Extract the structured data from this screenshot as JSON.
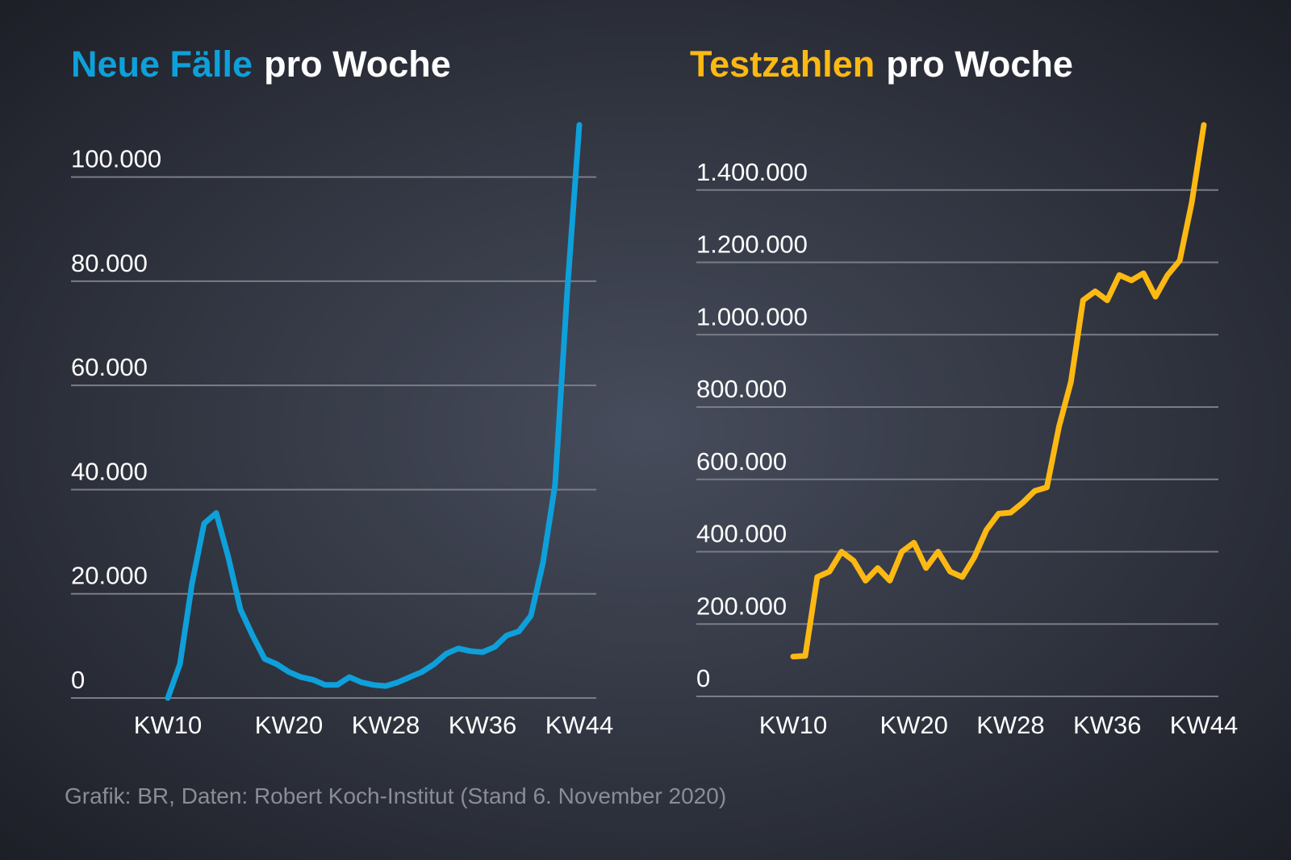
{
  "chart_data": [
    {
      "type": "line",
      "title_highlight": "Neue Fälle",
      "title_rest": "pro Woche",
      "x": [
        10,
        11,
        12,
        13,
        14,
        15,
        16,
        17,
        18,
        19,
        20,
        21,
        22,
        23,
        24,
        25,
        26,
        27,
        28,
        29,
        30,
        31,
        32,
        33,
        34,
        35,
        36,
        37,
        38,
        39,
        40,
        41,
        42,
        43,
        44
      ],
      "series": [
        {
          "color": "#0ea0da",
          "values": [
            0,
            6500,
            22000,
            33500,
            35500,
            27000,
            17000,
            12000,
            7500,
            6500,
            5000,
            4000,
            3500,
            2500,
            2500,
            4000,
            3000,
            2500,
            2300,
            3000,
            4000,
            5000,
            6500,
            8500,
            9500,
            9000,
            8800,
            9800,
            12000,
            12800,
            15800,
            26000,
            41000,
            78000,
            110000
          ]
        }
      ],
      "xlim": [
        10,
        44
      ],
      "xticks": [
        {
          "value": 10,
          "label": "KW10"
        },
        {
          "value": 20,
          "label": "KW20"
        },
        {
          "value": 28,
          "label": "KW28"
        },
        {
          "value": 36,
          "label": "KW36"
        },
        {
          "value": 44,
          "label": "KW44"
        }
      ],
      "ylim": [
        0,
        110000
      ],
      "yticks": [
        0,
        {
          "value": 20000,
          "label": "20.000"
        },
        {
          "value": 40000,
          "label": "40.000"
        },
        {
          "value": 60000,
          "label": "60.000"
        },
        {
          "value": 80000,
          "label": "80.000"
        },
        {
          "value": 100000,
          "label": "100.000"
        }
      ],
      "grid": true
    },
    {
      "type": "line",
      "title_highlight": "Testzahlen",
      "title_rest": "pro Woche",
      "x": [
        10,
        11,
        12,
        13,
        14,
        15,
        16,
        17,
        18,
        19,
        20,
        21,
        22,
        23,
        24,
        25,
        26,
        27,
        28,
        29,
        30,
        31,
        32,
        33,
        34,
        35,
        36,
        37,
        38,
        39,
        40,
        41,
        42,
        43,
        44
      ],
      "series": [
        {
          "color": "#fdb913",
          "values": [
            110000,
            112000,
            330000,
            345000,
            400000,
            375000,
            320000,
            355000,
            320000,
            400000,
            425000,
            355000,
            400000,
            345000,
            330000,
            385000,
            460000,
            505000,
            508000,
            535000,
            568000,
            578000,
            745000,
            870000,
            1095000,
            1120000,
            1095000,
            1165000,
            1150000,
            1170000,
            1105000,
            1165000,
            1205000,
            1365000,
            1580000
          ]
        }
      ],
      "xlim": [
        10,
        44
      ],
      "xticks": [
        {
          "value": 10,
          "label": "KW10"
        },
        {
          "value": 20,
          "label": "KW20"
        },
        {
          "value": 28,
          "label": "KW28"
        },
        {
          "value": 36,
          "label": "KW36"
        },
        {
          "value": 44,
          "label": "KW44"
        }
      ],
      "ylim": [
        0,
        1600000
      ],
      "yticks": [
        0,
        {
          "value": 200000,
          "label": "200.000"
        },
        {
          "value": 400000,
          "label": "400.000"
        },
        {
          "value": 600000,
          "label": "600.000"
        },
        {
          "value": 800000,
          "label": "800.000"
        },
        {
          "value": 1000000,
          "label": "1.000.000"
        },
        {
          "value": 1200000,
          "label": "1.200.000"
        },
        {
          "value": 1400000,
          "label": "1.400.000"
        }
      ],
      "grid": true
    }
  ],
  "source": "Grafik: BR, Daten: Robert Koch-Institut (Stand 6. November 2020)"
}
